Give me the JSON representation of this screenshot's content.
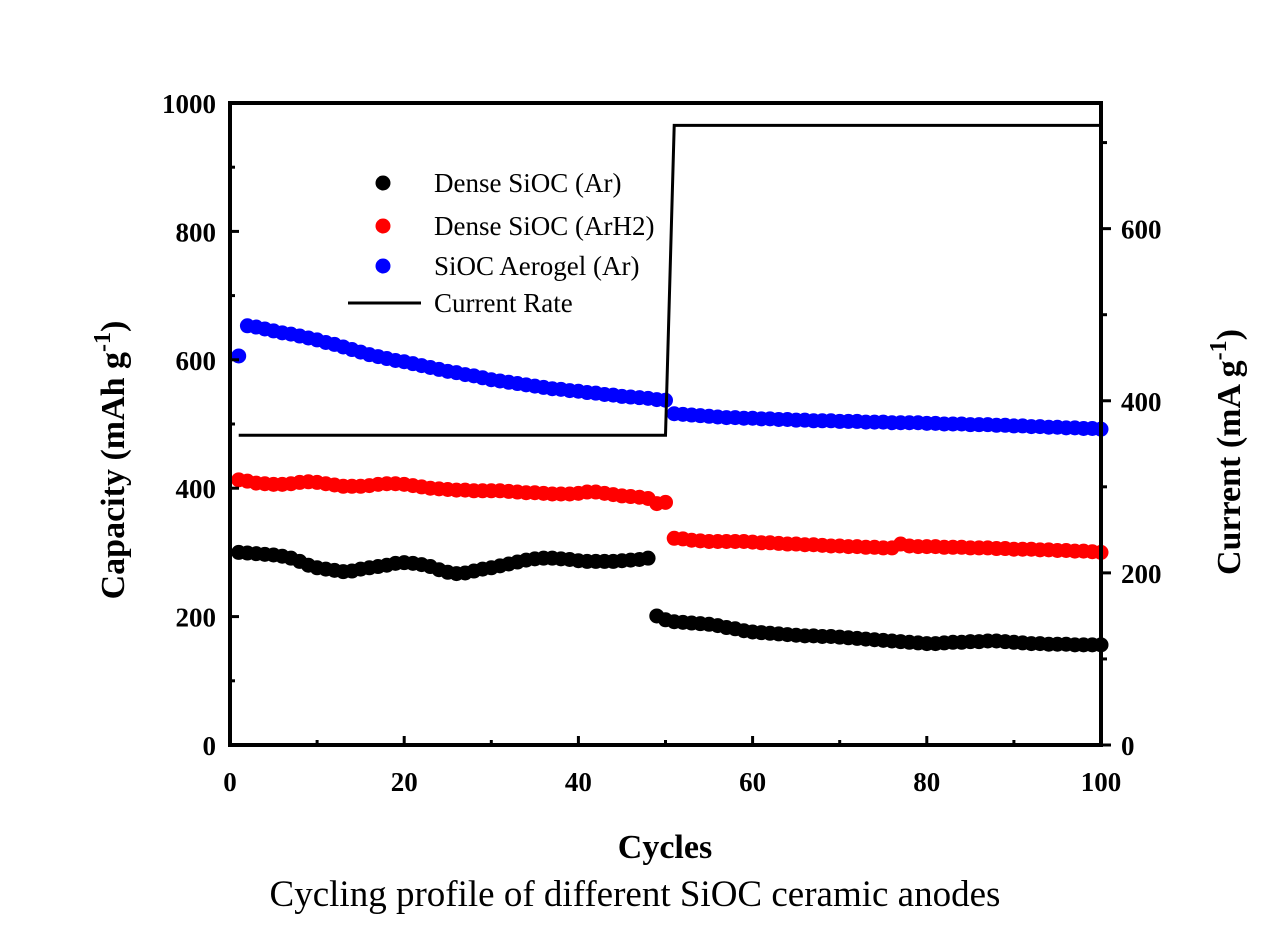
{
  "chart_data": {
    "type": "scatter",
    "caption": "Cycling profile of different SiOC ceramic anodes",
    "xlabel": "Cycles",
    "ylabel": "Capacity (mAh g",
    "ylabel_sup": "-1",
    "ylabel_end": ")",
    "y2label": "Current (mA g",
    "y2label_sup": "-1",
    "y2label_end": ")",
    "xlim": [
      0,
      100
    ],
    "ylim": [
      0,
      1000
    ],
    "y2lim": [
      0,
      746
    ],
    "xticks": [
      "0",
      "20",
      "40",
      "60",
      "80",
      "100"
    ],
    "yticks": [
      "0",
      "200",
      "400",
      "600",
      "800",
      "1000"
    ],
    "y2ticks": [
      "0",
      "200",
      "400",
      "600"
    ],
    "grid": false,
    "legend_position": "top-left",
    "x": [
      1,
      2,
      3,
      4,
      5,
      6,
      7,
      8,
      9,
      10,
      11,
      12,
      13,
      14,
      15,
      16,
      17,
      18,
      19,
      20,
      21,
      22,
      23,
      24,
      25,
      26,
      27,
      28,
      29,
      30,
      31,
      32,
      33,
      34,
      35,
      36,
      37,
      38,
      39,
      40,
      41,
      42,
      43,
      44,
      45,
      46,
      47,
      48,
      49,
      50,
      51,
      52,
      53,
      54,
      55,
      56,
      57,
      58,
      59,
      60,
      61,
      62,
      63,
      64,
      65,
      66,
      67,
      68,
      69,
      70,
      71,
      72,
      73,
      74,
      75,
      76,
      77,
      78,
      79,
      80,
      81,
      82,
      83,
      84,
      85,
      86,
      87,
      88,
      89,
      90,
      91,
      92,
      93,
      94,
      95,
      96,
      97,
      98,
      99,
      100
    ],
    "series": [
      {
        "name": "Dense SiOC (Ar)",
        "color": "#000000",
        "axis": "left",
        "kind": "scatter",
        "values": [
          300,
          299,
          298,
          297,
          296,
          294,
          291,
          286,
          280,
          276,
          274,
          272,
          270,
          271,
          274,
          276,
          278,
          280,
          283,
          284,
          283,
          281,
          278,
          273,
          269,
          267,
          268,
          271,
          274,
          276,
          279,
          282,
          285,
          288,
          290,
          291,
          291,
          290,
          289,
          287,
          286,
          286,
          286,
          286,
          287,
          288,
          289,
          291,
          201,
          195,
          192,
          191,
          190,
          189,
          188,
          186,
          183,
          181,
          178,
          176,
          175,
          174,
          173,
          172,
          171,
          170,
          170,
          169,
          169,
          168,
          167,
          166,
          165,
          164,
          163,
          162,
          161,
          160,
          159,
          158,
          158,
          159,
          160,
          160,
          161,
          161,
          162,
          162,
          161,
          160,
          159,
          158,
          158,
          157,
          157,
          157,
          156,
          156,
          156,
          156
        ]
      },
      {
        "name": "Dense SiOC (ArH2)",
        "color": "#ff0000",
        "axis": "left",
        "kind": "scatter",
        "values": [
          413,
          411,
          408,
          407,
          406,
          406,
          407,
          409,
          410,
          409,
          407,
          405,
          403,
          403,
          403,
          404,
          406,
          407,
          407,
          406,
          404,
          402,
          400,
          399,
          398,
          397,
          397,
          396,
          396,
          396,
          396,
          395,
          394,
          393,
          393,
          392,
          391,
          391,
          391,
          392,
          394,
          394,
          392,
          390,
          388,
          387,
          386,
          384,
          376,
          378,
          322,
          321,
          319,
          318,
          317,
          317,
          317,
          317,
          317,
          316,
          315,
          315,
          314,
          313,
          313,
          312,
          312,
          311,
          310,
          310,
          309,
          309,
          308,
          308,
          307,
          307,
          313,
          310,
          309,
          309,
          309,
          308,
          308,
          308,
          307,
          307,
          307,
          306,
          306,
          305,
          305,
          305,
          304,
          304,
          303,
          303,
          302,
          302,
          301,
          300
        ]
      },
      {
        "name": "SiOC Aerogel (Ar)",
        "color": "#0000ff",
        "axis": "left",
        "kind": "scatter",
        "values": [
          606,
          653,
          651,
          648,
          645,
          642,
          640,
          637,
          634,
          631,
          627,
          624,
          620,
          616,
          612,
          608,
          605,
          602,
          599,
          597,
          594,
          591,
          588,
          585,
          582,
          580,
          577,
          575,
          572,
          569,
          567,
          565,
          563,
          561,
          559,
          557,
          555,
          554,
          552,
          551,
          549,
          548,
          546,
          545,
          543,
          542,
          541,
          540,
          538,
          537,
          516,
          515,
          514,
          513,
          512,
          511,
          510,
          510,
          509,
          509,
          508,
          508,
          507,
          507,
          506,
          506,
          505,
          505,
          505,
          504,
          504,
          504,
          503,
          503,
          503,
          502,
          502,
          502,
          502,
          501,
          501,
          500,
          500,
          500,
          499,
          499,
          499,
          498,
          498,
          497,
          497,
          496,
          496,
          495,
          495,
          494,
          494,
          493,
          493,
          492
        ]
      },
      {
        "name": "Current Rate",
        "color": "#000000",
        "axis": "right",
        "kind": "line",
        "points": [
          [
            1,
            360
          ],
          [
            50,
            360
          ],
          [
            51,
            720
          ],
          [
            100,
            720
          ]
        ]
      }
    ]
  }
}
